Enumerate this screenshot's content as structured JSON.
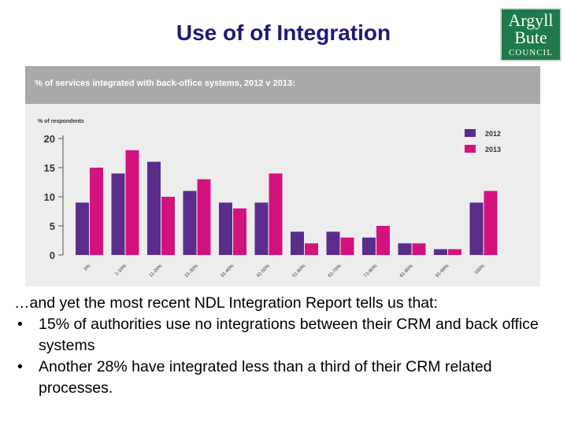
{
  "slide": {
    "title": "Use of of Integration"
  },
  "logo": {
    "line1": "Argyll",
    "line2": "Bute",
    "line3": "COUNCIL"
  },
  "chart_data": {
    "type": "bar",
    "title": "% of services integrated with back-office systems, 2012 v 2013:",
    "ylabel": "% of respondents",
    "xlabel": "",
    "categories": [
      "0%",
      "1-10%",
      "11-20%",
      "21-30%",
      "31-40%",
      "41-50%",
      "51-60%",
      "61-70%",
      "71-80%",
      "81-90%",
      "91-99%",
      "100%"
    ],
    "series": [
      {
        "name": "2012",
        "color": "#5a2d8c",
        "values": [
          9,
          14,
          16,
          11,
          9,
          9,
          4,
          4,
          3,
          2,
          1,
          9
        ]
      },
      {
        "name": "2013",
        "color": "#d4127e",
        "values": [
          15,
          18,
          10,
          13,
          8,
          14,
          2,
          3,
          5,
          2,
          1,
          11
        ]
      }
    ],
    "ylim": [
      0,
      20
    ],
    "yticks": [
      0,
      5,
      10,
      15,
      20
    ],
    "legend_position": "top-right",
    "grid": false
  },
  "text": {
    "intro": "…and yet the most recent NDL Integration Report tells us that:",
    "bullet_char": "•",
    "bullets": [
      "15% of authorities use no integrations between their CRM and back office systems",
      "Another 28% have integrated less than a third of their CRM related processes."
    ]
  }
}
